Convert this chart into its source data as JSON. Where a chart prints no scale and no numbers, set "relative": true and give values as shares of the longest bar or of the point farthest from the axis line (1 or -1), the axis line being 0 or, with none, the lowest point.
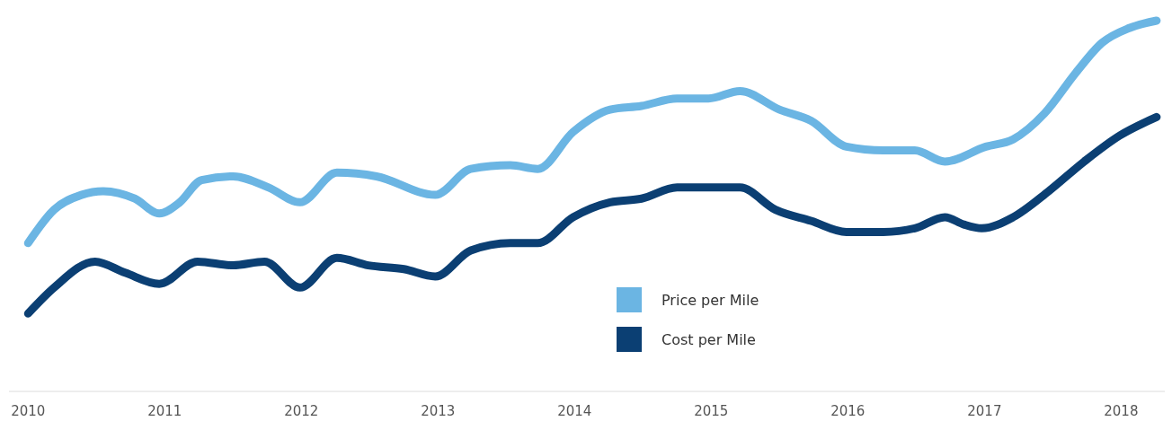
{
  "chart_data": {
    "type": "line",
    "relative": true,
    "xlim": [
      2009.86,
      2018.32
    ],
    "xticks": [
      2010,
      2011,
      2012,
      2013,
      2014,
      2015,
      2016,
      2017,
      2018
    ],
    "legend": "bottom",
    "line_style": "solid",
    "series": [
      {
        "name": "Price per Mile",
        "color": "#6bb5e3",
        "x": [
          2010,
          2010.19,
          2010.39,
          2010.55,
          2010.78,
          2010.96,
          2011.11,
          2011.27,
          2011.5,
          2011.76,
          2011.99,
          2012.26,
          2012.55,
          2012.98,
          2013.24,
          2013.53,
          2013.73,
          2013.99,
          2014.26,
          2014.49,
          2014.75,
          2014.98,
          2015.21,
          2015.5,
          2015.73,
          2015.99,
          2016.26,
          2016.49,
          2016.71,
          2017.01,
          2017.21,
          2017.44,
          2017.67,
          2017.86,
          2018.06,
          2018.26
        ],
        "values": [
          0.4,
          0.49,
          0.53,
          0.54,
          0.52,
          0.48,
          0.51,
          0.57,
          0.58,
          0.55,
          0.51,
          0.59,
          0.58,
          0.53,
          0.6,
          0.61,
          0.6,
          0.7,
          0.76,
          0.77,
          0.79,
          0.79,
          0.81,
          0.76,
          0.73,
          0.66,
          0.65,
          0.65,
          0.62,
          0.66,
          0.68,
          0.75,
          0.86,
          0.94,
          0.98,
          1
        ]
      },
      {
        "name": "Cost per Mile",
        "color": "#0b3f73",
        "x": [
          2010,
          2010.19,
          2010.49,
          2010.71,
          2010.96,
          2011.24,
          2011.5,
          2011.73,
          2011.99,
          2012.26,
          2012.49,
          2012.75,
          2012.98,
          2013.24,
          2013.53,
          2013.73,
          2013.99,
          2014.26,
          2014.49,
          2014.75,
          2014.98,
          2015.21,
          2015.47,
          2015.73,
          2015.99,
          2016.26,
          2016.49,
          2016.71,
          2016.85,
          2016.98,
          2017.21,
          2017.47,
          2017.73,
          2017.99,
          2018.26
        ],
        "values": [
          0.21,
          0.28,
          0.35,
          0.32,
          0.29,
          0.35,
          0.34,
          0.35,
          0.28,
          0.36,
          0.34,
          0.33,
          0.31,
          0.38,
          0.4,
          0.4,
          0.47,
          0.51,
          0.52,
          0.55,
          0.55,
          0.55,
          0.49,
          0.46,
          0.43,
          0.43,
          0.44,
          0.47,
          0.45,
          0.44,
          0.47,
          0.54,
          0.62,
          0.69,
          0.74
        ]
      }
    ]
  }
}
